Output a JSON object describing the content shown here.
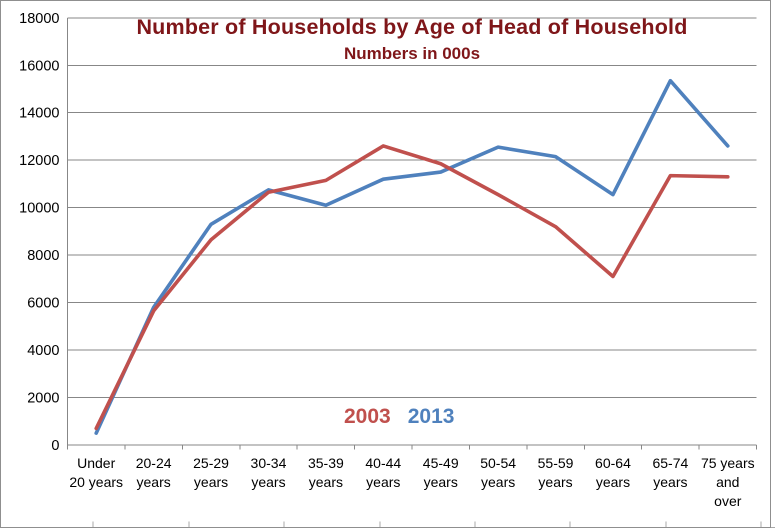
{
  "window": {
    "background": "#ffffff",
    "border_color": "#8f8f8f"
  },
  "chart_data": {
    "type": "line",
    "title": "Number of Households by Age of Head of Household",
    "subtitle": "Numbers in 000s",
    "title_color": "#7f1619",
    "categories": [
      "Under 20 years",
      "20-24 years",
      "25-29 years",
      "30-34 years",
      "35-39 years",
      "40-44 years",
      "45-49 years",
      "50-54 years",
      "55-59 years",
      "60-64 years",
      "65-74 years",
      "75 years and over"
    ],
    "category_label_lines": [
      [
        "Under",
        "20 years"
      ],
      [
        "20-24",
        "years"
      ],
      [
        "25-29",
        "years"
      ],
      [
        "30-34",
        "years"
      ],
      [
        "35-39",
        "years"
      ],
      [
        "40-44",
        "years"
      ],
      [
        "45-49",
        "years"
      ],
      [
        "50-54",
        "years"
      ],
      [
        "55-59",
        "years"
      ],
      [
        "60-64",
        "years"
      ],
      [
        "65-74",
        "years"
      ],
      [
        "75 years",
        "and",
        "over"
      ]
    ],
    "series": [
      {
        "name": "2003",
        "color": "#c0504d",
        "values": [
          700,
          5650,
          8650,
          10650,
          11150,
          12600,
          11850,
          10550,
          9200,
          7100,
          11350,
          11300
        ]
      },
      {
        "name": "2013",
        "color": "#4f81bd",
        "values": [
          500,
          5800,
          9300,
          10750,
          10100,
          11200,
          11500,
          12550,
          12150,
          10550,
          15350,
          12600
        ]
      }
    ],
    "y_ticks": [
      0,
      2000,
      4000,
      6000,
      8000,
      10000,
      12000,
      14000,
      16000,
      18000
    ],
    "ylim": [
      0,
      18000
    ],
    "xlabel": "",
    "ylabel": "",
    "grid": true,
    "gridline_color": "#878787",
    "axis_text_color": "#000000",
    "legend_position": "bottom-center-inside",
    "legend_entries": [
      "2003",
      "2013"
    ]
  }
}
